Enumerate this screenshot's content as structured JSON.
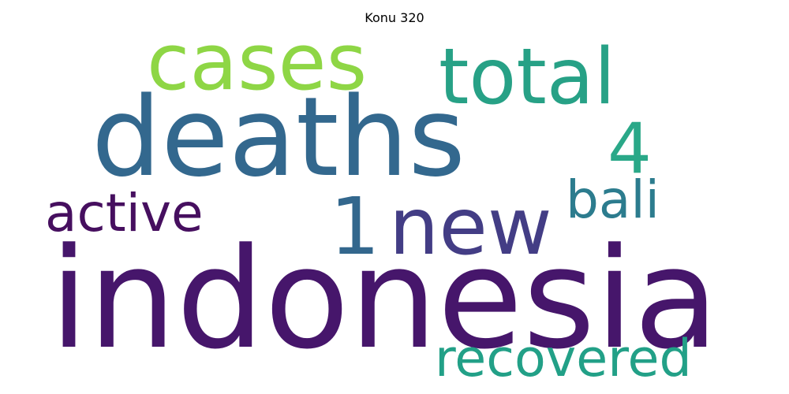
{
  "title": "Konu 320",
  "words": {
    "indonesia": {
      "text": "indonesia",
      "color": "#46166b"
    },
    "deaths": {
      "text": "deaths",
      "color": "#33688e"
    },
    "cases": {
      "text": "cases",
      "color": "#8ed645"
    },
    "total": {
      "text": "total",
      "color": "#27a186"
    },
    "four": {
      "text": "4",
      "color": "#2aa888"
    },
    "one": {
      "text": "1",
      "color": "#33678d"
    },
    "new": {
      "text": "new",
      "color": "#433d85"
    },
    "bali": {
      "text": "bali",
      "color": "#2c7c8e"
    },
    "active": {
      "text": "active",
      "color": "#460f5f"
    },
    "recovered": {
      "text": "recovered",
      "color": "#22a087"
    }
  }
}
